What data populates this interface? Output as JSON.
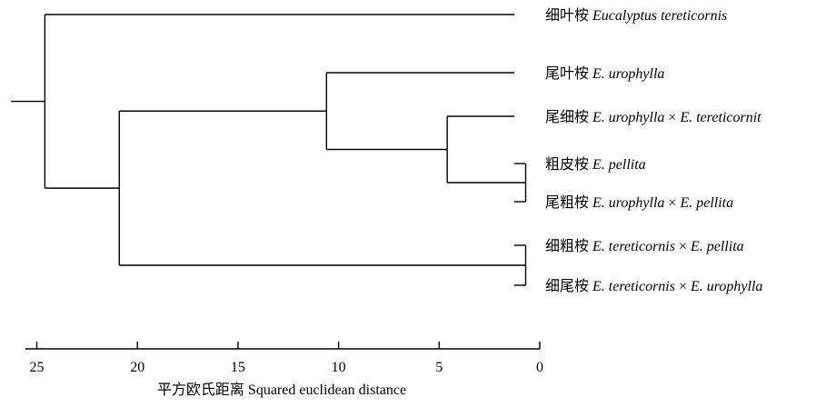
{
  "dendrogram": {
    "leaves": [
      {
        "id": "L1",
        "zh": "细叶桉",
        "latin": "Eucalyptus tereticornis"
      },
      {
        "id": "L2",
        "zh": "尾叶桉",
        "latin": "E. urophylla"
      },
      {
        "id": "L3",
        "zh": "尾细桉",
        "latin": "E. urophylla × E. tereticornit"
      },
      {
        "id": "L4",
        "zh": "粗皮桉",
        "latin": "E. pellita"
      },
      {
        "id": "L5",
        "zh": "尾粗桉",
        "latin": "E. urophylla × E. pellita"
      },
      {
        "id": "L6",
        "zh": "细粗桉",
        "latin": "E. tereticornis × E. pellita"
      },
      {
        "id": "L7",
        "zh": "细尾桉",
        "latin": "E. tereticornis × E. urophylla"
      }
    ],
    "merges": [
      {
        "id": "N1",
        "children": [
          "L4",
          "L5"
        ],
        "distance": 0.7
      },
      {
        "id": "N2",
        "children": [
          "L6",
          "L7"
        ],
        "distance": 0.7
      },
      {
        "id": "N3",
        "children": [
          "L3",
          "N1"
        ],
        "distance": 4.6
      },
      {
        "id": "N4",
        "children": [
          "L2",
          "N3"
        ],
        "distance": 10.6
      },
      {
        "id": "N5",
        "children": [
          "N4",
          "N2"
        ],
        "distance": 20.9
      },
      {
        "id": "N6",
        "children": [
          "L1",
          "N5"
        ],
        "distance": 24.6
      }
    ]
  },
  "axis": {
    "title": "平方欧氏距离 Squared euclidean distance",
    "range": [
      27,
      0
    ],
    "ticks": [
      {
        "value": 25,
        "label": "25"
      },
      {
        "value": 20,
        "label": "20"
      },
      {
        "value": 15,
        "label": "15"
      },
      {
        "value": 10,
        "label": "10"
      },
      {
        "value": 5,
        "label": "5"
      },
      {
        "value": 0,
        "label": "0"
      }
    ]
  }
}
